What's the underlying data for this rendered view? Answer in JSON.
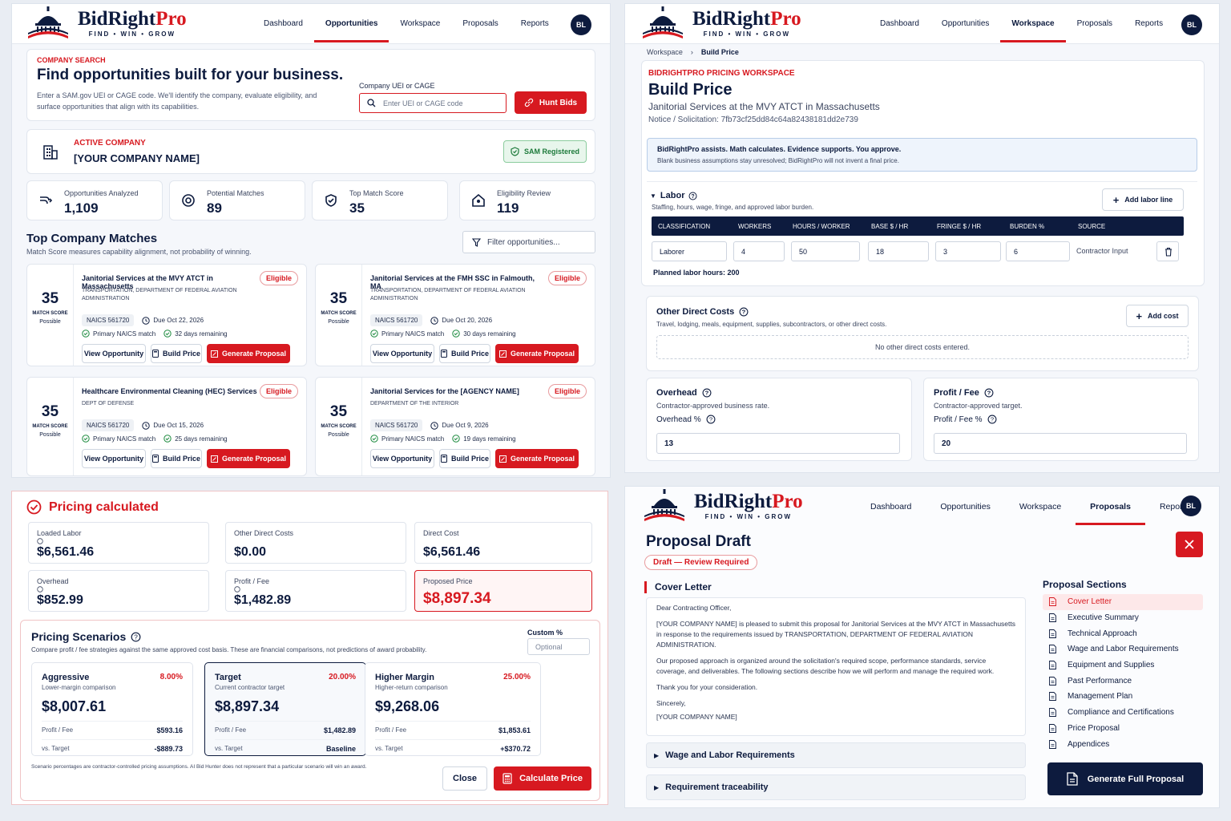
{
  "nav": {
    "brand_main": "BidRight",
    "brand_accent": "Pro",
    "tagline": "FIND • WIN • GROW",
    "links": [
      "Dashboard",
      "Opportunities",
      "Workspace",
      "Proposals",
      "Reports"
    ],
    "avatar": "BL"
  },
  "search": {
    "eyebrow": "COMPANY SEARCH",
    "title": "Find opportunities built for your business.",
    "desc": "Enter a SAM.gov UEI or CAGE code. We'll identify the company, evaluate eligibility, and surface opportunities that align with its capabilities.",
    "field_label": "Company UEI or CAGE",
    "placeholder": "Enter UEI or CAGE code",
    "button": "Hunt Bids"
  },
  "company": {
    "eyebrow": "ACTIVE COMPANY",
    "name": "[YOUR COMPANY NAME]",
    "badge": "SAM Registered"
  },
  "stats": [
    {
      "label": "Opportunities Analyzed",
      "value": "1,109",
      "icon": "shuffle-icon"
    },
    {
      "label": "Potential Matches",
      "value": "89",
      "icon": "target-icon"
    },
    {
      "label": "Top Match Score",
      "value": "35",
      "icon": "shield-check-icon"
    },
    {
      "label": "Eligibility Review",
      "value": "119",
      "icon": "id-badge-icon"
    }
  ],
  "matches": {
    "title": "Top Company Matches",
    "subtitle": "Match Score measures capability alignment, not probability of winning.",
    "filter_placeholder": "Filter opportunities...",
    "score_label": "MATCH SCORE",
    "view_btn": "View Opportunity",
    "build_btn": "Build Price",
    "gen_btn": "Generate Proposal",
    "items": [
      {
        "score": "35",
        "status": "Possible",
        "title": "Janitorial Services at the MVY ATCT in Massachusetts",
        "agency": "TRANSPORTATION, DEPARTMENT OF FEDERAL AVIATION ADMINISTRATION",
        "naics": "NAICS 561720",
        "due": "Due Oct 22, 2026",
        "check1": "Primary NAICS match",
        "check2": "32 days remaining",
        "badge": "Eligible"
      },
      {
        "score": "35",
        "status": "Possible",
        "title": "Janitorial Services at the FMH SSC in Falmouth, MA",
        "agency": "TRANSPORTATION, DEPARTMENT OF FEDERAL AVIATION ADMINISTRATION",
        "naics": "NAICS 561720",
        "due": "Due Oct 20, 2026",
        "check1": "Primary NAICS match",
        "check2": "30 days remaining",
        "badge": "Eligible"
      },
      {
        "score": "35",
        "status": "Possible",
        "title": "Healthcare Environmental Cleaning (HEC) Services",
        "agency": "DEPT OF DEFENSE",
        "naics": "NAICS 561720",
        "due": "Due Oct 15, 2026",
        "check1": "Primary NAICS match",
        "check2": "25 days remaining",
        "badge": "Eligible"
      },
      {
        "score": "35",
        "status": "Possible",
        "title": "Janitorial Services for the [AGENCY NAME]",
        "agency": "DEPARTMENT OF THE INTERIOR",
        "naics": "NAICS 561720",
        "due": "Due Oct 9, 2026",
        "check1": "Primary NAICS match",
        "check2": "19 days remaining",
        "badge": "Eligible"
      }
    ]
  },
  "build": {
    "crumb1": "Workspace",
    "crumb2": "Build Price",
    "eyebrow": "BIDRIGHTPRO PRICING WORKSPACE",
    "title": "Build Price",
    "subtitle": "Janitorial Services at the MVY ATCT in Massachusetts",
    "notice": "Notice / Solicitation: 7fb73cf25dd84c64a82438181dd2e739",
    "info_title": "BidRightPro assists. Math calculates. Evidence supports. You approve.",
    "info_desc": "Blank business assumptions stay unresolved; BidRightPro will not invent a final price.",
    "labor": {
      "title": "Labor",
      "desc": "Staffing, hours, wage, fringe, and approved labor burden.",
      "add": "Add labor line",
      "cols": [
        "CLASSIFICATION",
        "WORKERS",
        "HOURS / WORKER",
        "BASE $ / HR",
        "FRINGE $ / HR",
        "BURDEN %",
        "SOURCE"
      ],
      "row": [
        "Laborer",
        "4",
        "50",
        "18",
        "3",
        "6"
      ],
      "source": "Contractor Input",
      "planned": "Planned labor hours: 200"
    },
    "odc": {
      "title": "Other Direct Costs",
      "desc": "Travel, lodging, meals, equipment, supplies, subcontractors, or other direct costs.",
      "add": "Add cost",
      "empty": "No other direct costs entered."
    },
    "overhead": {
      "title": "Overhead",
      "desc": "Contractor-approved business rate.",
      "label": "Overhead %",
      "value": "13"
    },
    "profit": {
      "title": "Profit / Fee",
      "desc": "Contractor-approved target.",
      "label": "Profit / Fee %",
      "value": "20"
    }
  },
  "pricing": {
    "title": "Pricing calculated",
    "metrics": [
      {
        "label": "Loaded Labor",
        "value": "$6,561.46"
      },
      {
        "label": "Other Direct Costs",
        "value": "$0.00"
      },
      {
        "label": "Direct Cost",
        "value": "$6,561.46"
      },
      {
        "label": "Overhead",
        "value": "$852.99"
      },
      {
        "label": "Profit / Fee",
        "value": "$1,482.89"
      },
      {
        "label": "Proposed Price",
        "value": "$8,897.34"
      }
    ],
    "scenarios_title": "Pricing Scenarios",
    "scenarios_desc": "Compare profit / fee strategies against the same approved cost basis. These are financial comparisons, not predictions of award probability.",
    "custom_label": "Custom %",
    "custom_placeholder": "Optional",
    "row1": "Profit / Fee",
    "row2": "vs. Target",
    "scenarios": [
      {
        "name": "Aggressive",
        "pct": "8.00%",
        "desc": "Lower-margin comparison",
        "value": "$8,007.61",
        "profit": "$593.16",
        "vs": "-$889.73"
      },
      {
        "name": "Target",
        "pct": "20.00%",
        "desc": "Current contractor target",
        "value": "$8,897.34",
        "profit": "$1,482.89",
        "vs": "Baseline"
      },
      {
        "name": "Higher Margin",
        "pct": "25.00%",
        "desc": "Higher-return comparison",
        "value": "$9,268.06",
        "profit": "$1,853.61",
        "vs": "+$370.72"
      }
    ],
    "footnote": "Scenario percentages are contractor-controlled pricing assumptions. AI Bid Hunter does not represent that a particular scenario will win an award.",
    "close": "Close",
    "calc": "Calculate Price"
  },
  "proposal": {
    "title": "Proposal Draft",
    "badge": "Draft — Review Required",
    "cover_title": "Cover Letter",
    "letter": [
      "Dear Contracting Officer,",
      "[YOUR COMPANY NAME] is pleased to submit this proposal for Janitorial Services at the MVY ATCT in Massachusetts in response to the requirements issued by TRANSPORTATION, DEPARTMENT OF FEDERAL AVIATION ADMINISTRATION.",
      "Our proposed approach is organized around the solicitation's required scope, performance standards, service coverage, and deliverables. The following sections describe how we will perform and manage the required work.",
      "Thank you for your consideration.",
      "Sincerely,",
      "[YOUR COMPANY NAME]"
    ],
    "collapsed": [
      "Wage and Labor Requirements",
      "Requirement traceability"
    ],
    "sections_title": "Proposal Sections",
    "sections": [
      "Cover Letter",
      "Executive Summary",
      "Technical Approach",
      "Wage and Labor Requirements",
      "Equipment and Supplies",
      "Past Performance",
      "Management Plan",
      "Compliance and Certifications",
      "Price Proposal",
      "Appendices"
    ],
    "generate": "Generate Full Proposal"
  }
}
